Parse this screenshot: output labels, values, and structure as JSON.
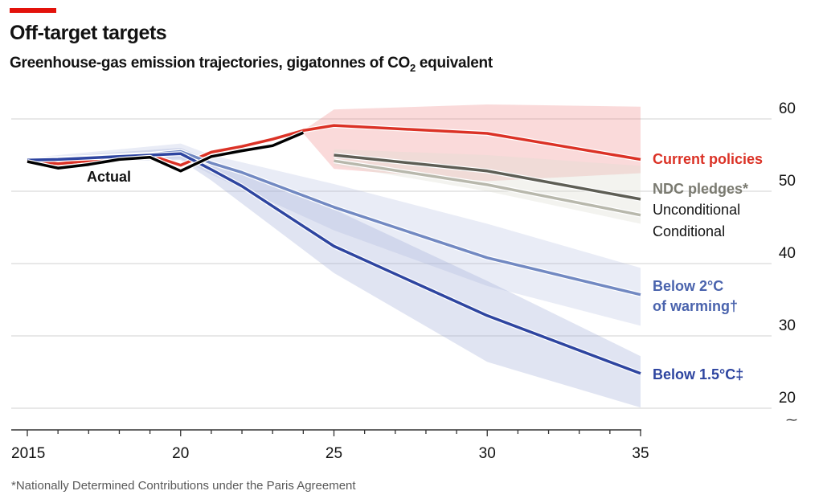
{
  "header": {
    "title": "Off-target targets",
    "subtitle_pre": "Greenhouse-gas emission trajectories, gigatonnes of CO",
    "subtitle_sub": "2",
    "subtitle_post": " equivalent"
  },
  "footnote": "*Nationally Determined Contributions under the Paris Agreement",
  "chart_data": {
    "type": "line",
    "title": "Off-target targets",
    "subtitle": "Greenhouse-gas emission trajectories, gigatonnes of CO2 equivalent",
    "xlabel": "",
    "ylabel": "",
    "xlim": [
      2015,
      2035
    ],
    "ylim": [
      20,
      62
    ],
    "yticks": [
      20,
      30,
      40,
      50,
      60
    ],
    "xticks": [
      2015,
      2020,
      2025,
      2030,
      2035
    ],
    "xtick_labels": [
      "2015",
      "20",
      "25",
      "30",
      "35"
    ],
    "grid": true,
    "y_axis_side": "right",
    "series": [
      {
        "name": "Actual",
        "color": "#000000",
        "x": [
          2015,
          2016,
          2017,
          2018,
          2019,
          2020,
          2021,
          2022,
          2023,
          2024
        ],
        "values": [
          54.1,
          53.2,
          53.7,
          54.4,
          54.7,
          52.8,
          54.8,
          55.6,
          56.3,
          58.1
        ]
      },
      {
        "name": "Current policies",
        "color": "#db3226",
        "x": [
          2015,
          2016,
          2017,
          2018,
          2019,
          2020,
          2021,
          2022,
          2023,
          2024,
          2025,
          2030,
          2035
        ],
        "values": [
          54.3,
          53.8,
          54.2,
          54.8,
          55.0,
          53.6,
          55.4,
          56.2,
          57.2,
          58.4,
          59.1,
          58.0,
          54.4
        ],
        "band": {
          "x": [
            2024,
            2025,
            2030,
            2035
          ],
          "upper": [
            58.4,
            61.3,
            62.0,
            61.7
          ],
          "lower": [
            58.0,
            53.1,
            51.4,
            52.5
          ]
        }
      },
      {
        "name": "NDC pledges* Unconditional",
        "color": "#5e5e55",
        "x": [
          2025,
          2030,
          2035
        ],
        "values": [
          55.0,
          52.8,
          48.9
        ],
        "band": {
          "x": [
            2025,
            2030,
            2035
          ],
          "upper": [
            55.8,
            55.0,
            53.5
          ],
          "lower": [
            53.6,
            50.0,
            45.5
          ]
        }
      },
      {
        "name": "NDC pledges* Conditional",
        "color": "#b8b8ac",
        "x": [
          2025,
          2030,
          2035
        ],
        "values": [
          54.2,
          50.9,
          46.7
        ]
      },
      {
        "name": "Below 2°C of warming†",
        "color": "#7289c2",
        "x": [
          2015,
          2016,
          2017,
          2018,
          2019,
          2020,
          2021,
          2022,
          2025,
          2030,
          2035
        ],
        "values": [
          54.4,
          54.5,
          54.7,
          54.9,
          55.1,
          55.5,
          53.9,
          52.6,
          47.8,
          40.8,
          35.7
        ],
        "band": {
          "x": [
            2015,
            2020,
            2021,
            2025,
            2030,
            2035
          ],
          "upper": [
            54.6,
            56.6,
            55.0,
            51.0,
            45.5,
            39.4
          ],
          "lower": [
            54.2,
            54.5,
            52.3,
            44.6,
            36.9,
            31.4
          ]
        }
      },
      {
        "name": "Below 1.5°C‡",
        "color": "#2e45a0",
        "x": [
          2015,
          2016,
          2017,
          2018,
          2019,
          2020,
          2021,
          2022,
          2025,
          2030,
          2035
        ],
        "values": [
          54.3,
          54.4,
          54.6,
          54.8,
          55.0,
          55.2,
          53.0,
          50.7,
          42.4,
          32.8,
          24.8
        ],
        "band": {
          "x": [
            2015,
            2020,
            2021,
            2025,
            2030,
            2035
          ],
          "upper": [
            54.5,
            56.0,
            54.2,
            47.5,
            37.6,
            27.2
          ],
          "lower": [
            54.1,
            54.3,
            51.5,
            38.7,
            26.4,
            20.1
          ]
        }
      }
    ],
    "labels": [
      {
        "text": "Actual",
        "color": "#121212"
      },
      {
        "text": "Current policies",
        "color": "#db3226"
      },
      {
        "text": "NDC pledges*",
        "color": "#7a7a70"
      },
      {
        "text": "Unconditional",
        "color": "#121212"
      },
      {
        "text": "Conditional",
        "color": "#121212"
      },
      {
        "text": "Below 2°C",
        "color": "#4a63ad"
      },
      {
        "text": "of warming†",
        "color": "#4a63ad"
      },
      {
        "text": "Below 1.5°C‡",
        "color": "#2e45a0"
      }
    ],
    "axis_break_symbol": "⁓"
  }
}
